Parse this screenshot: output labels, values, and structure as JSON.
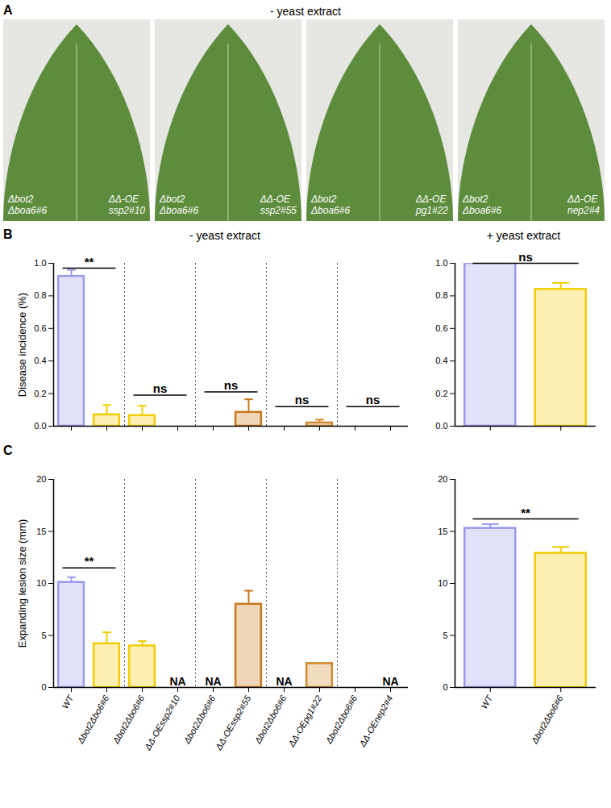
{
  "panel_A": {
    "letter": "A",
    "title": "- yeast extract",
    "photos": [
      {
        "left_label": [
          "Δbot2",
          "Δboa6#6"
        ],
        "right_label": [
          "ΔΔ-OE",
          "ssp2#10"
        ]
      },
      {
        "left_label": [
          "Δbot2",
          "Δboa6#6"
        ],
        "right_label": [
          "ΔΔ-OE",
          "ssp2#55"
        ]
      },
      {
        "left_label": [
          "Δbot2",
          "Δboa6#6"
        ],
        "right_label": [
          "ΔΔ-OE",
          "pg1#22"
        ]
      },
      {
        "left_label": [
          "Δbot2",
          "Δboa6#6"
        ],
        "right_label": [
          "ΔΔ-OE",
          "nep2#4"
        ]
      }
    ]
  },
  "chart_data": [
    {
      "type": "bar",
      "panel": "B",
      "title": "- yeast extract",
      "y_label": "Disease incidence (%)",
      "categories": [
        "WT",
        "Δbot2Δbo6#6",
        "Δbot2Δbo6#6",
        "ΔΔ-OEssp2#10",
        "Δbot2Δbo6#6",
        "ΔΔ-OEssp2#55",
        "Δbot2Δbo6#6",
        "ΔΔ-OEpg1#22",
        "Δbot2Δbo6#6",
        "ΔΔ-OEnep2#4"
      ],
      "values": [
        0.92,
        0.07,
        0.065,
        0,
        0,
        0.085,
        0,
        0.02,
        0,
        0
      ],
      "errors": [
        0.04,
        0.06,
        0.06,
        0,
        0,
        0.08,
        0,
        0.02,
        0,
        0
      ],
      "colors": [
        "#9a9aec",
        "#f2cc00",
        "#f2cc00",
        "#f2cc00",
        "#f2cc00",
        "#c8781a",
        "#f2cc00",
        "#d08a30",
        "#f2cc00",
        "#d08a30"
      ],
      "ylim": [
        0,
        1
      ],
      "yticks": [
        {
          "value": 0,
          "label": "0.0"
        },
        {
          "value": 0.2,
          "label": "0.2"
        },
        {
          "value": 0.4,
          "label": "0.4"
        },
        {
          "value": 0.6,
          "label": "0.6"
        },
        {
          "value": 0.8,
          "label": "0.8"
        },
        {
          "value": 1,
          "label": "1.0"
        }
      ],
      "tick_labels": "y",
      "annotations": [
        {
          "text": "**",
          "x": [
            0,
            1
          ],
          "y": 0.97
        },
        {
          "text": "ns",
          "x": [
            2,
            3
          ],
          "y": 0.19
        },
        {
          "text": "ns",
          "x": [
            4,
            5
          ],
          "y": 0.21
        },
        {
          "text": "ns",
          "x": [
            6,
            7
          ],
          "y": 0.12
        },
        {
          "text": "ns",
          "x": [
            8,
            9
          ],
          "y": 0.12
        }
      ]
    },
    {
      "type": "bar",
      "panel": "B",
      "title": "+ yeast extract",
      "categories": [
        "WT",
        "Δbot2Δbo6#6"
      ],
      "values": [
        1.0,
        0.84
      ],
      "errors": [
        0,
        0.04
      ],
      "colors": [
        "#9a9aec",
        "#f2cc00"
      ],
      "ylim": [
        0,
        1
      ],
      "yticks": [
        {
          "value": 0,
          "label": "0.0"
        },
        {
          "value": 0.2,
          "label": "0.2"
        },
        {
          "value": 0.4,
          "label": "0.4"
        },
        {
          "value": 0.6,
          "label": "0.6"
        },
        {
          "value": 0.8,
          "label": "0.8"
        },
        {
          "value": 1,
          "label": "1.0"
        }
      ],
      "tick_labels": "y",
      "annotations": [
        {
          "text": "ns",
          "x": [
            0,
            1
          ],
          "y": 1.0
        }
      ]
    },
    {
      "type": "bar",
      "panel": "C",
      "y_label": "Expanding lesion size (mm)",
      "categories": [
        "WT",
        "Δbot2Δbo6#6",
        "Δbot2Δbo6#6",
        "ΔΔ-OEssp2#10",
        "Δbot2Δbo6#6",
        "ΔΔ-OEssp2#55",
        "Δbot2Δbo6#6",
        "ΔΔ-OEpg1#22",
        "Δbot2Δbo6#6",
        "ΔΔ-OEnep2#4"
      ],
      "values": [
        10.1,
        4.2,
        4.0,
        null,
        null,
        8.0,
        null,
        2.3,
        null,
        null
      ],
      "errors": [
        0.5,
        1.1,
        0.45,
        null,
        null,
        1.3,
        null,
        0,
        null,
        null
      ],
      "colors": [
        "#9a9aec",
        "#f2cc00",
        "#f2cc00",
        "#f2cc00",
        "#f2cc00",
        "#c8781a",
        "#f2cc00",
        "#d08a30",
        "#f2cc00",
        "#d08a30"
      ],
      "ylim": [
        0,
        20
      ],
      "yticks": [
        0,
        5,
        10,
        15,
        20
      ],
      "annotations": [
        {
          "text": "**",
          "x": [
            0,
            1
          ],
          "y": 11.5
        },
        {
          "text": "NA",
          "x": 3,
          "y": 0
        },
        {
          "text": "NA",
          "x": 4,
          "y": 0
        },
        {
          "text": "NA",
          "x": 6,
          "y": 0
        },
        {
          "text": "NA",
          "x": 9,
          "y": 0
        }
      ]
    },
    {
      "type": "bar",
      "panel": "C",
      "categories": [
        "WT",
        "Δbot2Δbo6#6"
      ],
      "values": [
        15.3,
        12.9
      ],
      "errors": [
        0.4,
        0.6
      ],
      "colors": [
        "#9a9aec",
        "#f2cc00"
      ],
      "ylim": [
        0,
        20
      ],
      "yticks": [
        0,
        5,
        10,
        15,
        20
      ],
      "annotations": [
        {
          "text": "**",
          "x": [
            0,
            1
          ],
          "y": 16.2
        }
      ]
    }
  ]
}
